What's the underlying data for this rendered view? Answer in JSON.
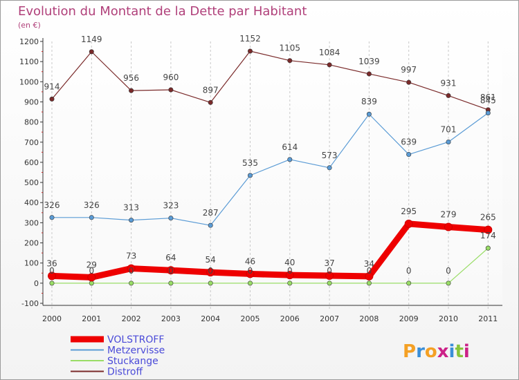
{
  "chart_data": {
    "type": "line",
    "title": "Evolution du Montant de la Dette par Habitant",
    "subtitle": "(en €)",
    "x": [
      "2000",
      "2001",
      "2002",
      "2003",
      "2004",
      "2005",
      "2006",
      "2007",
      "2008",
      "2009",
      "2010",
      "2011"
    ],
    "ylim": [
      -100,
      1200
    ],
    "yticks": [
      -100,
      0,
      100,
      200,
      300,
      400,
      500,
      600,
      700,
      800,
      900,
      1000,
      1100,
      1200
    ],
    "grid": "vertical dashed",
    "legend_position": "bottom-left",
    "series": [
      {
        "name": "VOLSTROFF",
        "color": "#ee0000",
        "values": [
          36,
          29,
          73,
          64,
          54,
          46,
          40,
          37,
          34,
          295,
          279,
          265
        ]
      },
      {
        "name": "Metzervisse",
        "color": "#5a9bd5",
        "values": [
          326,
          326,
          313,
          323,
          287,
          535,
          614,
          573,
          839,
          639,
          701,
          845
        ]
      },
      {
        "name": "Stuckange",
        "color": "#99dd66",
        "values": [
          0,
          0,
          0,
          0,
          0,
          0,
          0,
          0,
          0,
          0,
          0,
          174
        ]
      },
      {
        "name": "Distroff",
        "color": "#7a2a2a",
        "values": [
          914,
          1149,
          956,
          960,
          897,
          1152,
          1105,
          1084,
          1039,
          997,
          931,
          861
        ]
      }
    ]
  },
  "logo": {
    "text": "Proxiti",
    "colors": [
      "#f4a024",
      "#3a8ed8",
      "#f4a024",
      "#cc2288",
      "#3a8ed8",
      "#88c43c",
      "#cc2288"
    ]
  }
}
